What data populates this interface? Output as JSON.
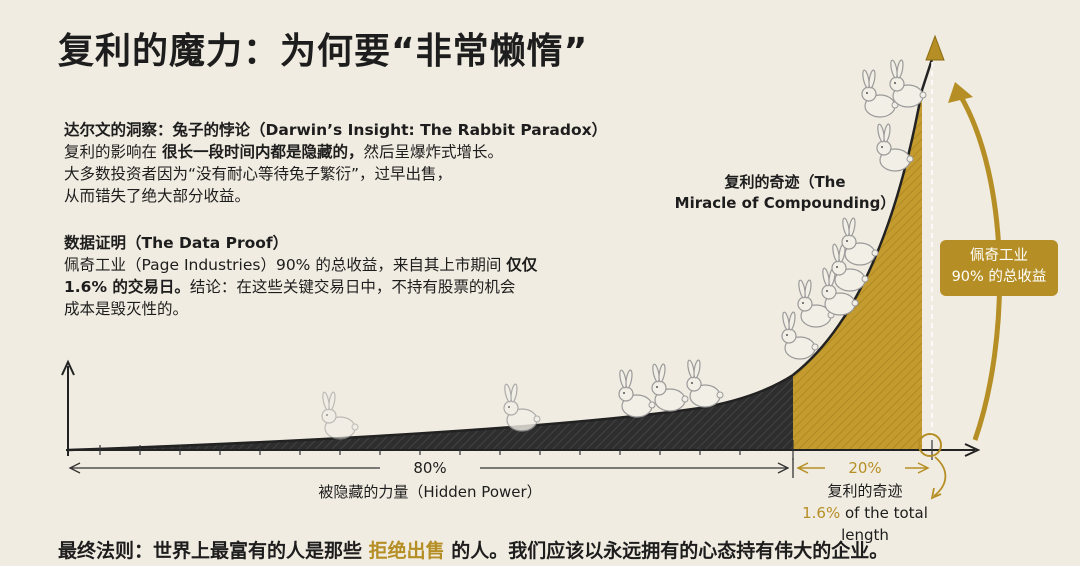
{
  "title": "复利的魔力：为何要“非常懒惰”",
  "insight": {
    "heading": "达尔文的洞察：兔子的悖论（Darwin’s Insight: The Rabbit Paradox）",
    "line1_pre": "复利的影响在",
    "line1_bold": "很长一段时间内都是隐藏的，",
    "line1_post": "然后呈爆炸式增长。",
    "line2": "大多数投资者因为“没有耐心等待兔子繁衍”，过早出售，",
    "line3": "从而错失了绝大部分收益。"
  },
  "proof": {
    "heading": "数据证明（The Data Proof）",
    "line1_pre": "佩奇工业（Page Industries）90% 的总收益，来自其上市期间",
    "line1_bold": "仅仅",
    "line2_bold": "1.6% 的交易日。",
    "line2_post": "结论：在这些关键交易日中，不持有股票的机会",
    "line3": "成本是毁灭性的。"
  },
  "miracle_label_1": "复利的奇迹（The",
  "miracle_label_2": "Miracle of Compounding）",
  "gold_box": {
    "line1": "佩奇工业",
    "line2": "90% 的总收益"
  },
  "bottom": {
    "pct80": "80%",
    "hidden_power": "被隐藏的力量（Hidden Power）",
    "pct20": "20%",
    "miracle_small": "复利的奇迹",
    "length_pct": "1.6%",
    "length_rest": " of the total length"
  },
  "final_rule": {
    "pre": "最终法则：世界上最富有的人是那些",
    "highlight": "拒绝出售",
    "post": "的人。我们应该以永远拥有的心态持有伟大的企业。"
  },
  "colors": {
    "gold": "#b58f25",
    "dark": "#333333",
    "background": "#f1ece1"
  },
  "icons": [
    "rabbit-icon",
    "arrow-up-icon"
  ]
}
